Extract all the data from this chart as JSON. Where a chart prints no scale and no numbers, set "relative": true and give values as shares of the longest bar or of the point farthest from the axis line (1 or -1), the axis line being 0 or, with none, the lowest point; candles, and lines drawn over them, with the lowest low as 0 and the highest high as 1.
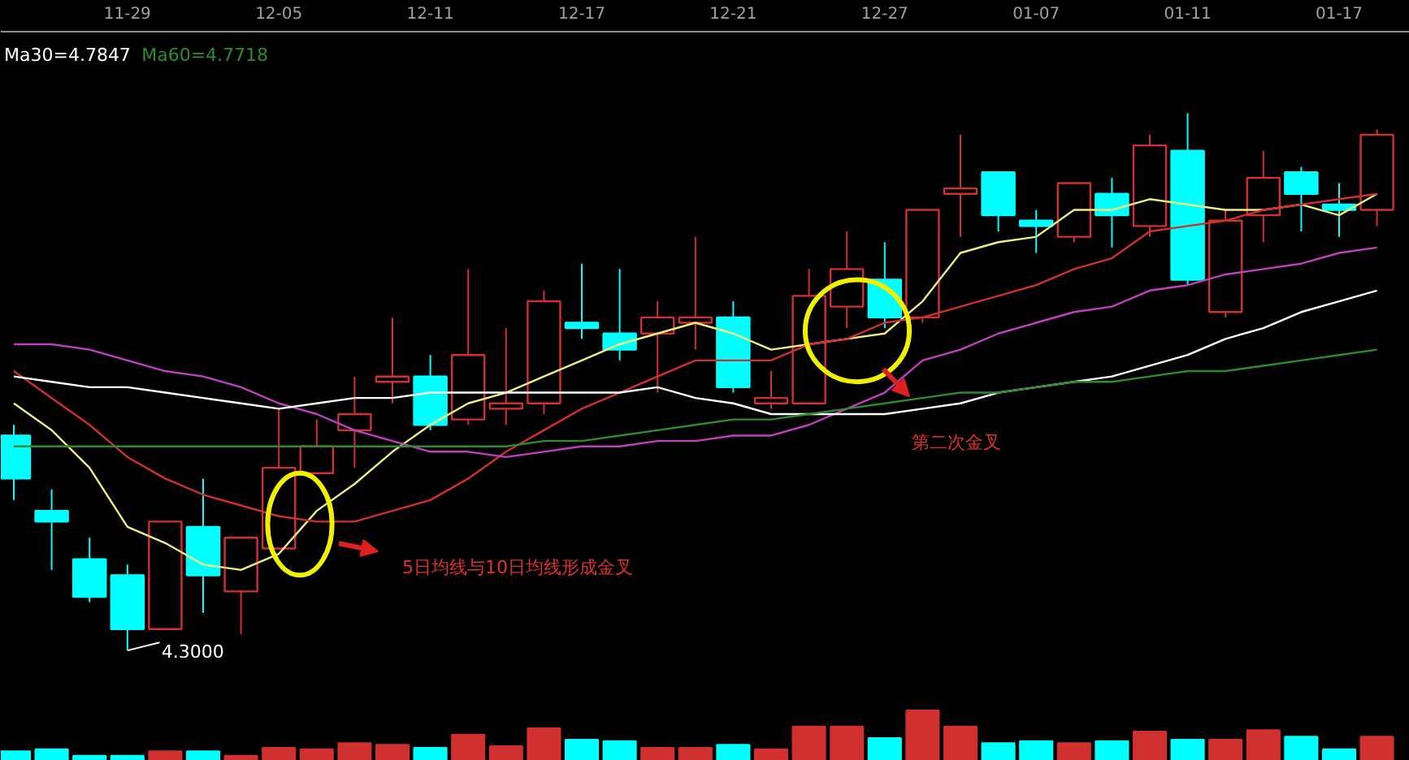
{
  "chart_data": [
    {
      "type": "candlestick",
      "relative": true,
      "legend": "top left",
      "categories": [
        null,
        null,
        null,
        "11-29",
        null,
        null,
        null,
        "12-05",
        null,
        null,
        null,
        "12-11",
        null,
        null,
        null,
        "12-17",
        null,
        null,
        null,
        "12-21",
        null,
        null,
        null,
        "12-27",
        null,
        null,
        null,
        "01-07",
        null,
        null,
        null,
        "01-11",
        null,
        null,
        null,
        "01-17",
        null
      ],
      "ohlc": [
        [
          0.4,
          0.42,
          0.28,
          0.32
        ],
        [
          0.26,
          0.3,
          0.15,
          0.24
        ],
        [
          0.17,
          0.21,
          0.09,
          0.1
        ],
        [
          0.14,
          0.16,
          0,
          0.04
        ],
        [
          0.04,
          0.24,
          0.04,
          0.24
        ],
        [
          0.23,
          0.32,
          0.07,
          0.14
        ],
        [
          0.11,
          0.21,
          0.03,
          0.21
        ],
        [
          0.19,
          0.45,
          0.19,
          0.34
        ],
        [
          0.33,
          0.43,
          0.33,
          0.38
        ],
        [
          0.41,
          0.51,
          0.34,
          0.44
        ],
        [
          0.5,
          0.62,
          0.46,
          0.51
        ],
        [
          0.51,
          0.55,
          0.41,
          0.42
        ],
        [
          0.43,
          0.71,
          0.42,
          0.55
        ],
        [
          0.45,
          0.6,
          0.42,
          0.46
        ],
        [
          0.46,
          0.67,
          0.44,
          0.65
        ],
        [
          0.61,
          0.72,
          0.58,
          0.6
        ],
        [
          0.59,
          0.71,
          0.54,
          0.56
        ],
        [
          0.59,
          0.65,
          0.48,
          0.62
        ],
        [
          0.61,
          0.77,
          0.56,
          0.62
        ],
        [
          0.62,
          0.65,
          0.48,
          0.49
        ],
        [
          0.46,
          0.52,
          0.45,
          0.47
        ],
        [
          0.46,
          0.71,
          0.46,
          0.66
        ],
        [
          0.64,
          0.78,
          0.6,
          0.71
        ],
        [
          0.69,
          0.76,
          0.6,
          0.62
        ],
        [
          0.62,
          0.82,
          0.61,
          0.82
        ],
        [
          0.85,
          0.96,
          0.77,
          0.86
        ],
        [
          0.89,
          0.89,
          0.78,
          0.81
        ],
        [
          0.8,
          0.82,
          0.74,
          0.79
        ],
        [
          0.77,
          0.87,
          0.76,
          0.87
        ],
        [
          0.85,
          0.88,
          0.75,
          0.81
        ],
        [
          0.79,
          0.96,
          0.77,
          0.94
        ],
        [
          0.93,
          1,
          0.68,
          0.69
        ],
        [
          0.63,
          0.82,
          0.62,
          0.8
        ],
        [
          0.81,
          0.93,
          0.76,
          0.88
        ],
        [
          0.89,
          0.9,
          0.78,
          0.85
        ],
        [
          0.83,
          0.87,
          0.77,
          0.82
        ],
        [
          0.82,
          0.97,
          0.79,
          0.96
        ]
      ],
      "colors": [
        "#00ffff",
        "#00ffff",
        "#00ffff",
        "#00ffff",
        "#d03030",
        "#00ffff",
        "#d03030",
        "#d03030",
        "#d03030",
        "#d03030",
        "#d03030",
        "#00ffff",
        "#d03030",
        "#d03030",
        "#d03030",
        "#00ffff",
        "#00ffff",
        "#d03030",
        "#d03030",
        "#00ffff",
        "#d03030",
        "#d03030",
        "#d03030",
        "#00ffff",
        "#d03030",
        "#d03030",
        "#00ffff",
        "#00ffff",
        "#d03030",
        "#00ffff",
        "#d03030",
        "#00ffff",
        "#d03030",
        "#d03030",
        "#00ffff",
        "#00ffff",
        "#d03030"
      ],
      "series": [
        {
          "type": "line",
          "color": "#f0f080",
          "values": [
            0.46,
            0.41,
            0.34,
            0.23,
            0.2,
            0.16,
            0.15,
            0.18,
            0.26,
            0.31,
            0.37,
            0.42,
            0.46,
            0.48,
            0.51,
            0.54,
            0.57,
            0.59,
            0.61,
            0.59,
            0.56,
            0.57,
            0.58,
            0.59,
            0.65,
            0.74,
            0.76,
            0.77,
            0.82,
            0.82,
            0.84,
            0.83,
            0.82,
            0.82,
            0.83,
            0.81,
            0.85
          ]
        },
        {
          "type": "line",
          "color": "#d03030",
          "values": [
            0.52,
            0.47,
            0.42,
            0.36,
            0.32,
            0.29,
            0.27,
            0.25,
            0.24,
            0.24,
            0.26,
            0.28,
            0.32,
            0.37,
            0.41,
            0.45,
            0.48,
            0.51,
            0.54,
            0.54,
            0.54,
            0.57,
            0.58,
            0.61,
            0.62,
            0.64,
            0.66,
            0.68,
            0.71,
            0.73,
            0.78,
            0.79,
            0.8,
            0.82,
            0.83,
            0.84,
            0.85
          ]
        },
        {
          "type": "line",
          "color": "#c040c0",
          "values": [
            0.57,
            0.57,
            0.56,
            0.54,
            0.52,
            0.51,
            0.49,
            0.46,
            0.44,
            0.41,
            0.39,
            0.37,
            0.37,
            0.36,
            0.37,
            0.38,
            0.38,
            0.39,
            0.39,
            0.4,
            0.4,
            0.42,
            0.45,
            0.48,
            0.54,
            0.56,
            0.59,
            0.61,
            0.63,
            0.64,
            0.67,
            0.68,
            0.7,
            0.71,
            0.72,
            0.74,
            0.75
          ]
        },
        {
          "type": "line",
          "name": "Ma30=4.7847",
          "color": "#ffffff",
          "values": [
            0.51,
            0.5,
            0.49,
            0.49,
            0.48,
            0.47,
            0.46,
            0.45,
            0.46,
            0.47,
            0.47,
            0.48,
            0.48,
            0.48,
            0.48,
            0.48,
            0.48,
            0.49,
            0.47,
            0.46,
            0.44,
            0.44,
            0.44,
            0.44,
            0.45,
            0.46,
            0.48,
            0.49,
            0.5,
            0.51,
            0.53,
            0.55,
            0.58,
            0.6,
            0.63,
            0.65,
            0.67
          ]
        },
        {
          "type": "line",
          "name": "Ma60=4.7718",
          "color": "#2e8b2e",
          "values": [
            0.38,
            0.38,
            0.38,
            0.38,
            0.38,
            0.38,
            0.38,
            0.38,
            0.38,
            0.38,
            0.38,
            0.38,
            0.38,
            0.38,
            0.39,
            0.39,
            0.4,
            0.41,
            0.42,
            0.43,
            0.43,
            0.44,
            0.45,
            0.46,
            0.47,
            0.48,
            0.48,
            0.49,
            0.5,
            0.5,
            0.51,
            0.52,
            0.52,
            0.53,
            0.54,
            0.55,
            0.56
          ]
        }
      ],
      "annotations": [
        {
          "text": "4.3000",
          "x": "11-29",
          "y": 0
        },
        "5日均线与10日均线形成金叉",
        "第二次金叉"
      ]
    },
    {
      "type": "bar",
      "relative": true,
      "categories": [
        null,
        null,
        null,
        null,
        null,
        null,
        null,
        null,
        null,
        null,
        null,
        null,
        null,
        null,
        null,
        null,
        null,
        null,
        null,
        null,
        null,
        null,
        null,
        null,
        null,
        null,
        null,
        null,
        null,
        null,
        null,
        null,
        null,
        null,
        null,
        null,
        null
      ],
      "values": [
        0.19,
        0.23,
        0.1,
        0.1,
        0.19,
        0.19,
        0.1,
        0.26,
        0.23,
        0.35,
        0.32,
        0.26,
        0.52,
        0.29,
        0.65,
        0.42,
        0.39,
        0.26,
        0.26,
        0.32,
        0.23,
        0.68,
        0.68,
        0.45,
        1,
        0.68,
        0.35,
        0.39,
        0.35,
        0.39,
        0.58,
        0.42,
        0.42,
        0.61,
        0.48,
        0.23,
        0.48
      ],
      "colors": [
        "#00ffff",
        "#00ffff",
        "#00ffff",
        "#00ffff",
        "#d03030",
        "#00ffff",
        "#d03030",
        "#d03030",
        "#d03030",
        "#d03030",
        "#d03030",
        "#00ffff",
        "#d03030",
        "#d03030",
        "#d03030",
        "#00ffff",
        "#00ffff",
        "#d03030",
        "#d03030",
        "#00ffff",
        "#d03030",
        "#d03030",
        "#d03030",
        "#00ffff",
        "#d03030",
        "#d03030",
        "#00ffff",
        "#00ffff",
        "#d03030",
        "#00ffff",
        "#d03030",
        "#00ffff",
        "#d03030",
        "#d03030",
        "#00ffff",
        "#00ffff",
        "#d03030"
      ]
    }
  ]
}
